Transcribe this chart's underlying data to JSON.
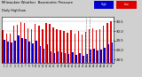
{
  "title": "Milwaukee Weather  Barometric Pressure",
  "subtitle": "Daily High/Low",
  "background_color": "#d0d0d0",
  "plot_bg": "#ffffff",
  "high_color": "#dd0000",
  "low_color": "#0000cc",
  "legend_high_color": "#0000cc",
  "legend_low_color": "#dd0000",
  "ylim": [
    28.3,
    30.75
  ],
  "yticks": [
    28.5,
    29.0,
    29.5,
    30.0,
    30.5
  ],
  "ytick_labels": [
    "28.5",
    "29.0",
    "29.5",
    "30.0",
    "30.5"
  ],
  "high_values": [
    30.05,
    29.85,
    29.85,
    30.3,
    30.35,
    30.48,
    30.42,
    30.15,
    30.1,
    30.38,
    30.28,
    30.1,
    30.45,
    30.38,
    30.2,
    30.08,
    30.05,
    30.0,
    29.9,
    30.05,
    29.88,
    30.0,
    29.82,
    29.95,
    30.1,
    30.15,
    30.05,
    30.1,
    30.28,
    30.45,
    30.52
  ],
  "low_values": [
    29.55,
    29.45,
    29.38,
    29.5,
    29.75,
    29.65,
    29.6,
    29.42,
    29.35,
    29.48,
    29.22,
    29.05,
    29.28,
    28.92,
    28.82,
    28.92,
    28.88,
    28.82,
    28.78,
    28.88,
    28.72,
    28.82,
    28.68,
    28.78,
    29.02,
    29.08,
    28.98,
    29.02,
    29.12,
    29.28,
    29.38
  ],
  "dashed_lines": [
    23,
    24
  ],
  "n_bars": 31,
  "base": 28.3,
  "bar_width": 0.38
}
